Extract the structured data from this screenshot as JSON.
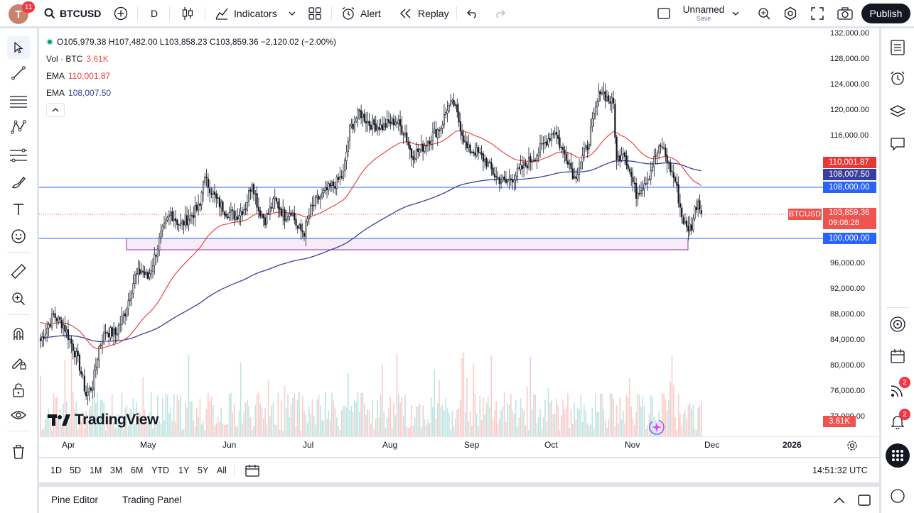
{
  "user": {
    "avatar_letter": "T",
    "notifications": "11"
  },
  "symbol": {
    "search_label": "BTCUSD",
    "interval": "D"
  },
  "toolbar": {
    "indicators_label": "Indicators",
    "alert_label": "Alert",
    "replay_label": "Replay",
    "layout_name": "Unnamed",
    "layout_save": "Save",
    "publish_label": "Publish"
  },
  "legend": {
    "ohlc": "O105,979.38 H107,482.00 L103,858.23 C103,859.36 −2,120.02 (−2.00%)",
    "vol_label": "Vol · BTC",
    "vol_value": "3.61K",
    "ema1_label": "EMA",
    "ema1_value": "110,001.87",
    "ema2_label": "EMA",
    "ema2_value": "108,007.50"
  },
  "price_axis": {
    "ticks": [
      "132,000.00",
      "128,000.00",
      "124,000.00",
      "120,000.00",
      "116,000.00",
      "96,000.00",
      "92,000.00",
      "88,000.00",
      "84,000.00",
      "80,000.00",
      "76,000.00",
      "72,000.00"
    ],
    "ema1_box": "110,001.87",
    "ema2_box": "108,007.50",
    "line_108_box": "108,000.00",
    "symbol_tag": "BTCUSD",
    "last_price": "103,859.36",
    "countdown": "09:08:28",
    "line_100_box": "100,000.00",
    "volume_box": "3.61K"
  },
  "time_axis": {
    "labels": [
      "Apr",
      "May",
      "Jun",
      "Jul",
      "Aug",
      "Sep",
      "Oct",
      "Nov",
      "Dec",
      "2026"
    ]
  },
  "watermark": "TradingView",
  "ranges": [
    "1D",
    "5D",
    "1M",
    "3M",
    "6M",
    "YTD",
    "1Y",
    "5Y",
    "All"
  ],
  "clock": "14:51:32 UTC",
  "panels": {
    "pine_editor": "Pine Editor",
    "trading_panel": "Trading Panel"
  },
  "right_badges": {
    "signals": "2",
    "alerts": "2"
  },
  "colors": {
    "up": "#26a69a",
    "down": "#ef5350",
    "ema_short": "#e53935",
    "ema_long": "#3a3e9c",
    "accent": "#2962ff",
    "zone": "#9c27b0"
  },
  "chart_data": {
    "type": "candlestick",
    "symbol": "BTCUSD",
    "interval": "D",
    "price_range": [
      70000,
      132000
    ],
    "x_labels": [
      "Apr",
      "May",
      "Jun",
      "Jul",
      "Aug",
      "Sep",
      "Oct",
      "Nov",
      "Dec",
      "2026"
    ],
    "horizontal_lines": [
      108000,
      100000
    ],
    "support_zone": [
      98000,
      100000
    ],
    "last_close": 103859.36,
    "ema_values": [
      110001.87,
      108007.5
    ],
    "anchors": [
      [
        0,
        84000
      ],
      [
        8,
        88000
      ],
      [
        14,
        86500
      ],
      [
        20,
        83000
      ],
      [
        24,
        80000
      ],
      [
        28,
        75500
      ],
      [
        32,
        77000
      ],
      [
        36,
        83000
      ],
      [
        40,
        85500
      ],
      [
        46,
        85000
      ],
      [
        52,
        88500
      ],
      [
        58,
        94000
      ],
      [
        62,
        95000
      ],
      [
        66,
        93800
      ],
      [
        70,
        97000
      ],
      [
        74,
        100500
      ],
      [
        80,
        104000
      ],
      [
        86,
        102000
      ],
      [
        92,
        103500
      ],
      [
        98,
        105000
      ],
      [
        100,
        109500
      ],
      [
        104,
        108000
      ],
      [
        108,
        106000
      ],
      [
        114,
        104200
      ],
      [
        120,
        103500
      ],
      [
        126,
        105000
      ],
      [
        130,
        109000
      ],
      [
        134,
        104500
      ],
      [
        138,
        103000
      ],
      [
        144,
        106000
      ],
      [
        150,
        103500
      ],
      [
        154,
        104500
      ],
      [
        158,
        101500
      ],
      [
        162,
        101000
      ],
      [
        166,
        104500
      ],
      [
        170,
        106000
      ],
      [
        176,
        107500
      ],
      [
        182,
        108800
      ],
      [
        186,
        110000
      ],
      [
        190,
        117000
      ],
      [
        196,
        119800
      ],
      [
        202,
        118000
      ],
      [
        210,
        117500
      ],
      [
        218,
        118500
      ],
      [
        224,
        116500
      ],
      [
        228,
        113000
      ],
      [
        234,
        114000
      ],
      [
        240,
        116000
      ],
      [
        246,
        117500
      ],
      [
        250,
        120500
      ],
      [
        254,
        121000
      ],
      [
        258,
        117500
      ],
      [
        262,
        114000
      ],
      [
        268,
        113500
      ],
      [
        274,
        112000
      ],
      [
        280,
        109500
      ],
      [
        286,
        108700
      ],
      [
        292,
        110000
      ],
      [
        298,
        111500
      ],
      [
        304,
        113000
      ],
      [
        310,
        115000
      ],
      [
        316,
        117000
      ],
      [
        320,
        114000
      ],
      [
        324,
        112500
      ],
      [
        328,
        109500
      ],
      [
        332,
        112000
      ],
      [
        336,
        114500
      ],
      [
        340,
        119000
      ],
      [
        344,
        123500
      ],
      [
        348,
        122000
      ],
      [
        352,
        121000
      ],
      [
        354,
        112000
      ],
      [
        358,
        114000
      ],
      [
        362,
        110500
      ],
      [
        366,
        107000
      ],
      [
        370,
        108500
      ],
      [
        374,
        110000
      ],
      [
        378,
        113000
      ],
      [
        382,
        114500
      ],
      [
        386,
        111500
      ],
      [
        390,
        109000
      ],
      [
        394,
        103500
      ],
      [
        397,
        101500
      ],
      [
        400,
        102000
      ],
      [
        402,
        104500
      ],
      [
        404,
        106000
      ],
      [
        406,
        103859
      ]
    ]
  }
}
